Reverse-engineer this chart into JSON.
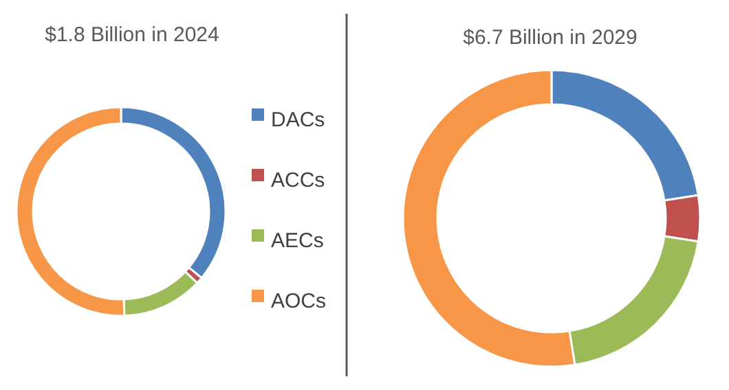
{
  "chart_data": [
    {
      "type": "donut",
      "title": "$1.8 Billion in 2024",
      "categories": [
        "DACs",
        "ACCs",
        "AECs",
        "AOCs"
      ],
      "values": [
        36,
        1,
        12.5,
        50.5
      ],
      "colors": [
        "#4f81bd",
        "#c0504d",
        "#9bbb59",
        "#f79646"
      ],
      "legend": "right"
    },
    {
      "type": "donut",
      "title": "$6.7 Billion in 2029",
      "categories": [
        null,
        null,
        null,
        null
      ],
      "values": [
        22.5,
        5,
        20,
        52.5
      ],
      "colors": [
        "#4f81bd",
        "#c0504d",
        "#9bbb59",
        "#f79646"
      ],
      "legend": false
    }
  ]
}
